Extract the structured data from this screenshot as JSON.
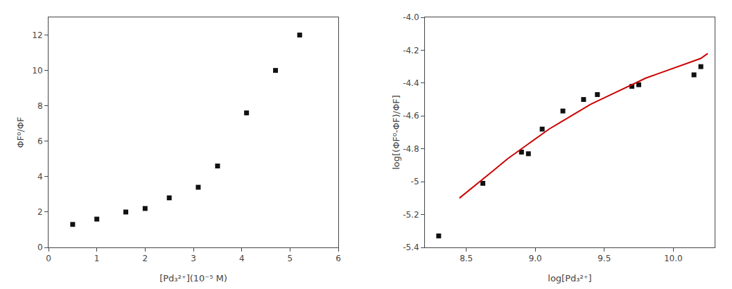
{
  "chart_data": [
    {
      "type": "scatter",
      "x_label": "[Pd₃²⁺](10⁻⁵ M)",
      "y_label": "ΦF⁰/ΦF",
      "x": [
        0.5,
        1.0,
        1.6,
        2.0,
        2.5,
        3.1,
        3.5,
        4.1,
        4.7,
        5.2
      ],
      "values": [
        1.3,
        1.6,
        2.0,
        2.2,
        2.8,
        3.4,
        4.6,
        7.6,
        10.0,
        12.0
      ],
      "color": "#111111",
      "marker": "square",
      "xlim": [
        0,
        6
      ],
      "ylim": [
        0,
        13
      ],
      "xticks": [
        0,
        1,
        2,
        3,
        4,
        5,
        6
      ],
      "yticks": [
        0,
        2,
        4,
        6,
        8,
        10,
        12
      ],
      "grid": false
    },
    {
      "type": "scatter",
      "x_label": "log[Pd₃²⁺]",
      "y_label": "log[(ΦF⁰-ΦF)/ΦF]",
      "series": [
        {
          "type": "scatter",
          "marker": "square",
          "color": "#111111",
          "x": [
            8.3,
            8.62,
            8.9,
            8.95,
            9.05,
            9.2,
            9.35,
            9.45,
            9.7,
            9.75,
            10.15,
            10.2
          ],
          "values": [
            -5.33,
            -5.01,
            -4.82,
            -4.83,
            -4.68,
            -4.57,
            -4.5,
            -4.47,
            -4.42,
            -4.41,
            -4.35,
            -4.3
          ]
        },
        {
          "type": "line",
          "line_style": "solid",
          "color": "#cc0000",
          "x": [
            8.45,
            8.6,
            8.7,
            8.8,
            8.9,
            9.0,
            9.1,
            9.2,
            9.3,
            9.4,
            9.5,
            9.6,
            9.7,
            9.8,
            9.9,
            10.0,
            10.1,
            10.2,
            10.25
          ],
          "values": [
            -5.1,
            -5.0,
            -4.93,
            -4.86,
            -4.8,
            -4.74,
            -4.68,
            -4.63,
            -4.58,
            -4.53,
            -4.49,
            -4.45,
            -4.41,
            -4.37,
            -4.34,
            -4.31,
            -4.28,
            -4.25,
            -4.22
          ]
        }
      ],
      "xlim": [
        8.2,
        10.3
      ],
      "ylim": [
        -5.4,
        -4.0
      ],
      "xticks": [
        8.5,
        {
          "value": 9.0,
          "label": "9.0"
        },
        9.5,
        {
          "value": 10.0,
          "label": "10.0"
        }
      ],
      "yticks": [
        -5.4,
        -5.2,
        -5.0,
        -4.8,
        -4.6,
        -4.4,
        -4.2,
        {
          "value": -4.0,
          "label": "-4.0"
        }
      ],
      "grid": false
    }
  ]
}
